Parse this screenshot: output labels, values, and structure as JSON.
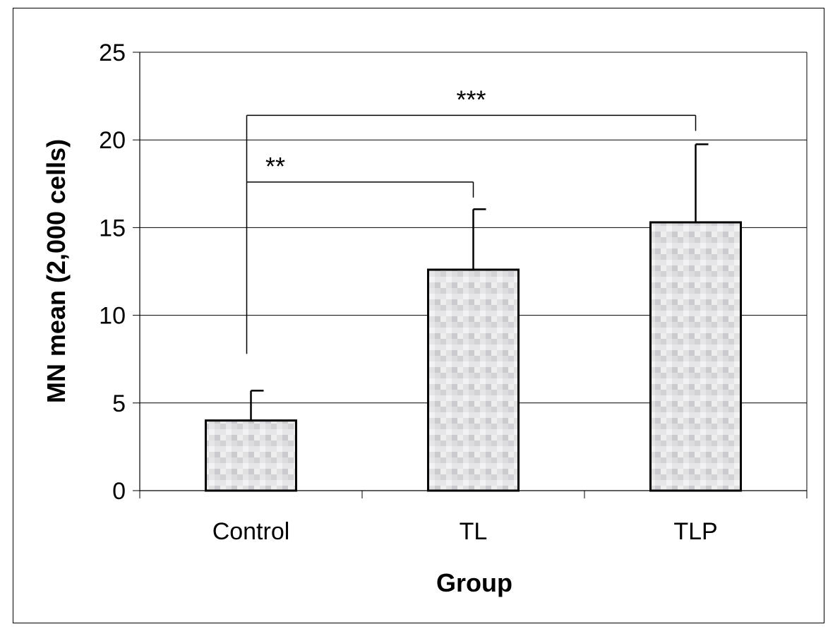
{
  "chart_data": {
    "type": "bar",
    "title": "",
    "xlabel": "Group",
    "ylabel": "MN mean (2,000 cells)",
    "categories": [
      "Control",
      "TL",
      "TLP"
    ],
    "values": [
      4.0,
      12.6,
      15.3
    ],
    "error_upper": [
      1.7,
      3.45,
      4.45
    ],
    "ylim": [
      0,
      25
    ],
    "yticks": [
      0,
      5,
      10,
      15,
      20,
      25
    ],
    "ytick_labels": [
      "0",
      "5",
      "10",
      "15",
      "20",
      "25"
    ],
    "grid": true,
    "bar_fill": "#d9d9d9",
    "significance": [
      {
        "from": "Control",
        "to": "TL",
        "label": "**",
        "y": 17.6
      },
      {
        "from": "Control",
        "to": "TLP",
        "label": "***",
        "y": 21.4
      }
    ]
  }
}
